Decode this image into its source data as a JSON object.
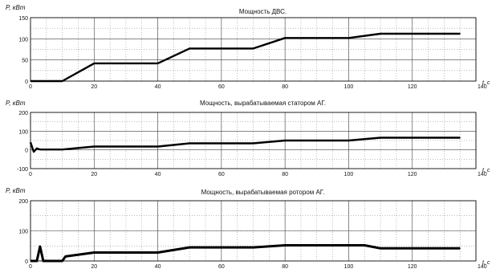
{
  "chart_data": [
    {
      "type": "line",
      "title": "Мощность ДВС.",
      "ylabel": "P, кВт",
      "xlabel": "t, c",
      "xlim": [
        0,
        140
      ],
      "ylim": [
        0,
        150
      ],
      "xticks": [
        0,
        20,
        40,
        60,
        80,
        100,
        120,
        140
      ],
      "yticks": [
        0,
        50,
        100,
        150
      ],
      "x_tick_labels": [
        "0",
        "20",
        "40",
        "60",
        "80",
        "100",
        "120",
        "140"
      ],
      "y_tick_labels": [
        "0",
        "50",
        "100",
        "150"
      ],
      "grid": true,
      "series": [
        {
          "color": "#000000",
          "x": [
            0,
            10,
            20,
            40,
            50,
            70,
            80,
            100,
            110,
            135
          ],
          "y": [
            0,
            0,
            42,
            42,
            77,
            77,
            102,
            102,
            112,
            112
          ]
        }
      ]
    },
    {
      "type": "line",
      "title": "Мощность, вырабатываемая статором АГ.",
      "ylabel": "P, кВт",
      "xlabel": "t, c",
      "xlim": [
        0,
        140
      ],
      "ylim": [
        -100,
        200
      ],
      "xticks": [
        0,
        20,
        40,
        60,
        80,
        100,
        120,
        140
      ],
      "yticks": [
        -100,
        0,
        100,
        200
      ],
      "x_tick_labels": [
        "0",
        "20",
        "40",
        "60",
        "80",
        "100",
        "120",
        "140"
      ],
      "y_tick_labels": [
        "-100",
        "0",
        "100",
        "200"
      ],
      "grid": true,
      "series": [
        {
          "color": "#000000",
          "x": [
            0,
            1,
            2,
            3,
            10,
            20,
            40,
            50,
            70,
            80,
            100,
            110,
            135
          ],
          "y": [
            40,
            -10,
            8,
            2,
            2,
            18,
            18,
            35,
            35,
            50,
            50,
            65,
            65
          ]
        }
      ]
    },
    {
      "type": "line",
      "title": "Мощность, вырабатываемая ротором АГ.",
      "ylabel": "P, кВт",
      "xlabel": "t, c",
      "xlim": [
        0,
        140
      ],
      "ylim": [
        0,
        200
      ],
      "xticks": [
        0,
        20,
        40,
        60,
        80,
        100,
        120,
        140
      ],
      "yticks": [
        0,
        100,
        200
      ],
      "x_tick_labels": [
        "0",
        "20",
        "40",
        "60",
        "80",
        "100",
        "120",
        "140"
      ],
      "y_tick_labels": [
        "0",
        "100",
        "200"
      ],
      "grid": true,
      "series": [
        {
          "color": "#000000",
          "x": [
            0,
            2,
            3,
            4,
            10,
            11,
            20,
            40,
            50,
            70,
            80,
            105,
            110,
            135
          ],
          "y": [
            0,
            0,
            48,
            0,
            0,
            15,
            28,
            28,
            45,
            45,
            52,
            52,
            42,
            42
          ]
        }
      ]
    }
  ]
}
